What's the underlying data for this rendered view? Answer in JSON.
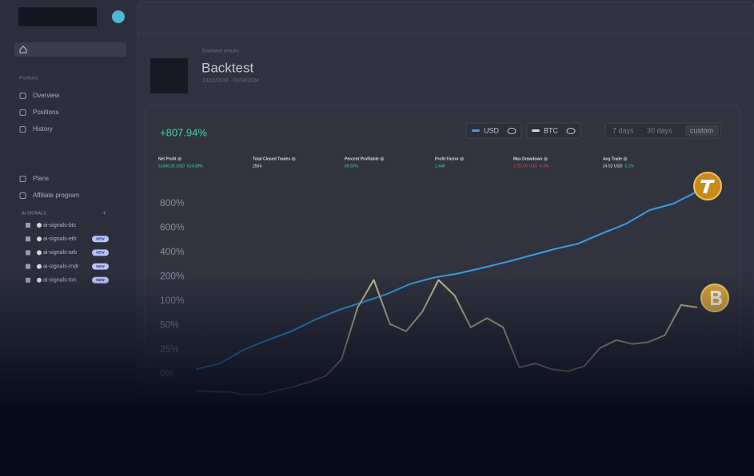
{
  "sidebar": {
    "portfolio_label": "Portfolio",
    "nav": [
      "Overview",
      "Positions",
      "History"
    ],
    "more_nav": [
      "Plans",
      "Affiliate program"
    ],
    "signals_label": "AI-SIGNALS",
    "add": "+",
    "channels": [
      {
        "name": "ai-signals-btc"
      },
      {
        "name": "ai-signals-eth",
        "badge": "NEW"
      },
      {
        "name": "ai-signals-arb",
        "badge": "NEW"
      },
      {
        "name": "ai-signals-rndr",
        "badge": "NEW"
      },
      {
        "name": "ai-signals-ton",
        "badge": "NEW"
      }
    ]
  },
  "header": {
    "breadcrumb": "Backtest results",
    "title": "Backtest",
    "date_range": "13/12/2019 - 01/04/2024"
  },
  "toolbar": {
    "return": "+807.94%",
    "toggles": [
      "USD",
      "BTC"
    ],
    "ranges": [
      "7 days",
      "30 days",
      "custom"
    ]
  },
  "stats": [
    {
      "label": "Net Profit",
      "value": "61408.35 USD",
      "change": "614.08%"
    },
    {
      "label": "Total Closed Trades",
      "value": "2504"
    },
    {
      "label": "Percent Profitable",
      "value": "69.93%"
    },
    {
      "label": "Profit Factor",
      "value": "1.448"
    },
    {
      "label": "Max Drawdown",
      "value": "1720.00 USD",
      "change": "6.3%"
    },
    {
      "label": "Avg Trade",
      "value": "24.52 USD",
      "change": "0.1%"
    }
  ],
  "chart_data": {
    "type": "line",
    "yticks": [
      {
        "value": 800,
        "label": "800%"
      },
      {
        "value": 600,
        "label": "600%"
      },
      {
        "value": 400,
        "label": "400%"
      },
      {
        "value": 200,
        "label": "200%"
      },
      {
        "value": 100,
        "label": "100%"
      },
      {
        "value": 50,
        "label": "50%"
      },
      {
        "value": 25,
        "label": "25%"
      },
      {
        "value": 0,
        "label": "0%"
      }
    ],
    "series": [
      {
        "color": "#3a9de8",
        "values": [
          5,
          11,
          25,
          35,
          44,
          62,
          82,
          98,
          129,
          171,
          197,
          227,
          273,
          320,
          373,
          426,
          471,
          555,
          633,
          747,
          800,
          900
        ]
      },
      {
        "color": "#cbbd98",
        "values": [
          -17,
          -18,
          -18,
          -21,
          -21,
          -17,
          -13,
          -8,
          -2,
          15,
          87,
          187,
          53,
          44,
          78,
          187,
          123,
          48,
          65,
          48,
          7,
          11,
          5,
          3,
          8,
          27,
          35,
          31,
          33,
          40,
          92,
          87
        ]
      }
    ]
  }
}
